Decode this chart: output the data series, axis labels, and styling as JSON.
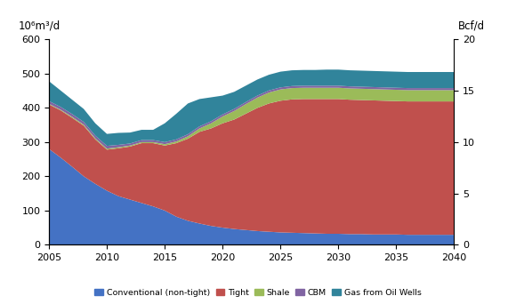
{
  "years": [
    2005,
    2006,
    2007,
    2008,
    2009,
    2010,
    2011,
    2012,
    2013,
    2014,
    2015,
    2016,
    2017,
    2018,
    2019,
    2020,
    2021,
    2022,
    2023,
    2024,
    2025,
    2026,
    2027,
    2028,
    2029,
    2030,
    2031,
    2032,
    2033,
    2034,
    2035,
    2036,
    2037,
    2038,
    2039,
    2040
  ],
  "conventional": [
    280,
    255,
    228,
    200,
    178,
    158,
    142,
    132,
    122,
    112,
    100,
    82,
    70,
    62,
    55,
    50,
    46,
    43,
    40,
    38,
    36,
    35,
    34,
    33,
    32,
    32,
    31,
    31,
    30,
    30,
    30,
    29,
    29,
    29,
    29,
    29
  ],
  "tight": [
    130,
    138,
    143,
    148,
    130,
    120,
    140,
    155,
    175,
    185,
    190,
    215,
    240,
    268,
    285,
    305,
    320,
    340,
    360,
    375,
    385,
    390,
    392,
    393,
    394,
    394,
    393,
    392,
    392,
    391,
    390,
    390,
    390,
    390,
    390,
    390
  ],
  "shale": [
    2,
    2,
    3,
    3,
    3,
    3,
    3,
    3,
    3,
    3,
    4,
    5,
    7,
    10,
    15,
    20,
    25,
    28,
    30,
    32,
    33,
    33,
    33,
    33,
    33,
    33,
    33,
    33,
    33,
    33,
    33,
    33,
    33,
    33,
    33,
    33
  ],
  "cbm": [
    8,
    8,
    8,
    8,
    8,
    8,
    7,
    6,
    6,
    6,
    6,
    6,
    6,
    6,
    6,
    6,
    6,
    6,
    6,
    6,
    6,
    6,
    6,
    6,
    6,
    6,
    6,
    6,
    6,
    6,
    6,
    6,
    6,
    6,
    6,
    6
  ],
  "gas_from_oil_wells": [
    58,
    48,
    42,
    38,
    36,
    35,
    35,
    32,
    30,
    30,
    55,
    75,
    90,
    80,
    70,
    55,
    50,
    48,
    47,
    46,
    46,
    46,
    46,
    46,
    47,
    47,
    47,
    47,
    47,
    47,
    47,
    47,
    47,
    47,
    47,
    47
  ],
  "colors": {
    "conventional": "#4472C4",
    "tight": "#C0504D",
    "shale": "#9BBB59",
    "cbm": "#8064A2",
    "gas_from_oil_wells": "#31849B"
  },
  "ylim_left": [
    0,
    600
  ],
  "ylim_right": [
    0,
    20
  ],
  "ylabel_left": "10⁶m³/d",
  "ylabel_right": "Bcf/d",
  "yticks_left": [
    0,
    100,
    200,
    300,
    400,
    500,
    600
  ],
  "yticks_right": [
    0,
    5,
    10,
    15,
    20
  ],
  "xlim": [
    2005,
    2040
  ],
  "xticks": [
    2005,
    2010,
    2015,
    2020,
    2025,
    2030,
    2035,
    2040
  ],
  "legend_labels": [
    "Conventional (non-tight)",
    "Tight",
    "Shale",
    "CBM",
    "Gas from Oil Wells"
  ],
  "legend_keys": [
    "conventional",
    "tight",
    "shale",
    "cbm",
    "gas_from_oil_wells"
  ]
}
